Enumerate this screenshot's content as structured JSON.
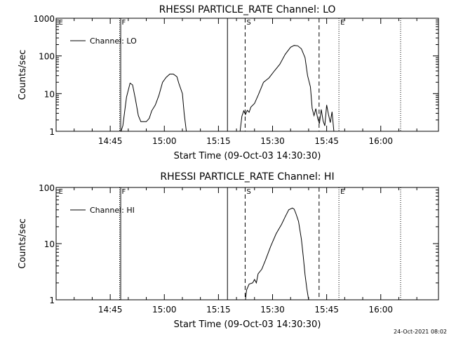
{
  "footer_timestamp": "24-Oct-2021 08:02",
  "chart_data": [
    {
      "type": "line",
      "title": "RHESSI PARTICLE_RATE Channel: LO",
      "xlabel": "Start Time (09-Oct-03 14:30:30)",
      "ylabel": "Counts/sec",
      "yscale": "log",
      "ylim": [
        1,
        1000
      ],
      "y_ticks": [
        {
          "value": 1,
          "label": "1"
        },
        {
          "value": 10,
          "label": "10"
        },
        {
          "value": 100,
          "label": "100"
        },
        {
          "value": 1000,
          "label": "1000"
        }
      ],
      "xlim_min": [
        0,
        106
      ],
      "x_ticks": [
        {
          "min": 15,
          "label": "14:45"
        },
        {
          "min": 30,
          "label": "15:00"
        },
        {
          "min": 45,
          "label": "15:15"
        },
        {
          "min": 60,
          "label": "15:30"
        },
        {
          "min": 75,
          "label": "15:45"
        },
        {
          "min": 90,
          "label": "16:00"
        }
      ],
      "legend": {
        "label": "Channel: LO",
        "position": "top-left"
      },
      "markers": [
        {
          "label": "E",
          "min": 0.3
        },
        {
          "label": "F",
          "min": 17.8
        },
        {
          "label": "S",
          "min": 52.4
        },
        {
          "label": "E",
          "min": 78.4
        }
      ],
      "vlines": [
        {
          "min": 17.6,
          "style": "dotted"
        },
        {
          "min": 17.9,
          "style": "solid"
        },
        {
          "min": 47.5,
          "style": "solid"
        },
        {
          "min": 52.4,
          "style": "dashed"
        },
        {
          "min": 72.9,
          "style": "dashed"
        },
        {
          "min": 78.4,
          "style": "dotted"
        },
        {
          "min": 95.5,
          "style": "dotted"
        }
      ],
      "segments": [
        {
          "x": [
            18.0,
            18.5,
            19.5,
            20.5,
            21.2,
            22.0,
            22.8,
            23.5,
            24.3,
            25.0,
            25.8,
            26.5,
            27.5,
            28.5,
            29.5,
            30.5,
            31.5,
            32.5,
            33.5,
            34.0,
            35.0,
            35.5,
            36.1
          ],
          "y": [
            1,
            1.4,
            8,
            19,
            17,
            7,
            2.6,
            1.8,
            1.8,
            1.8,
            2.2,
            3.5,
            5,
            9,
            20,
            27,
            33,
            33,
            28,
            19,
            10,
            3,
            1
          ]
        },
        {
          "x": [
            51.0,
            51.5,
            52.0,
            52.5,
            53.0,
            53.5,
            54.0,
            55.0,
            56.0,
            57.5,
            59.0,
            60.5,
            62.0,
            63.5,
            65.0,
            66.0,
            67.0,
            68.0,
            69.0,
            69.7,
            70.5,
            71.0,
            71.5,
            72.0,
            72.5,
            73.0,
            73.5,
            74.0,
            74.5,
            75.0,
            75.5,
            76.0,
            76.5,
            77.0
          ],
          "y": [
            1,
            2.5,
            3.5,
            2.8,
            3.6,
            3.2,
            4.4,
            5.5,
            9,
            20,
            26,
            40,
            60,
            110,
            170,
            190,
            185,
            155,
            90,
            30,
            15,
            4,
            2.6,
            4,
            2.2,
            1.6,
            3.8,
            1.9,
            1.4,
            5,
            2.8,
            1.7,
            3.3,
            1
          ]
        }
      ]
    },
    {
      "type": "line",
      "title": "RHESSI PARTICLE_RATE Channel: HI",
      "xlabel": "Start Time (09-Oct-03 14:30:30)",
      "ylabel": "Counts/sec",
      "yscale": "log",
      "ylim": [
        1,
        100
      ],
      "y_ticks": [
        {
          "value": 1,
          "label": "1"
        },
        {
          "value": 10,
          "label": "10"
        },
        {
          "value": 100,
          "label": "100"
        }
      ],
      "xlim_min": [
        0,
        106
      ],
      "x_ticks": [
        {
          "min": 15,
          "label": "14:45"
        },
        {
          "min": 30,
          "label": "15:00"
        },
        {
          "min": 45,
          "label": "15:15"
        },
        {
          "min": 60,
          "label": "15:30"
        },
        {
          "min": 75,
          "label": "15:45"
        },
        {
          "min": 90,
          "label": "16:00"
        }
      ],
      "legend": {
        "label": "Channel: HI",
        "position": "top-left"
      },
      "markers": [
        {
          "label": "E",
          "min": 0.3
        },
        {
          "label": "F",
          "min": 17.8
        },
        {
          "label": "S",
          "min": 52.4
        },
        {
          "label": "E",
          "min": 78.4
        }
      ],
      "vlines": [
        {
          "min": 17.6,
          "style": "dotted"
        },
        {
          "min": 17.9,
          "style": "solid"
        },
        {
          "min": 47.5,
          "style": "solid"
        },
        {
          "min": 52.4,
          "style": "dashed"
        },
        {
          "min": 72.9,
          "style": "dashed"
        },
        {
          "min": 78.4,
          "style": "dotted"
        },
        {
          "min": 95.5,
          "style": "dotted"
        }
      ],
      "segments": [
        {
          "x": [
            52.5,
            52.8,
            53.5,
            54.5,
            55.0,
            55.5,
            56.0,
            57.0,
            58.0,
            59.5,
            61.0,
            62.5,
            63.5,
            64.5,
            65.5,
            66.0,
            66.5,
            67.2,
            68.0,
            68.5,
            69.0,
            69.5,
            70.0
          ],
          "y": [
            1,
            1.5,
            1.9,
            2.0,
            2.3,
            2.0,
            2.9,
            3.5,
            5,
            9,
            15,
            22,
            30,
            40,
            43,
            41,
            34,
            25,
            12,
            6,
            2.8,
            1.6,
            1
          ]
        }
      ]
    }
  ]
}
